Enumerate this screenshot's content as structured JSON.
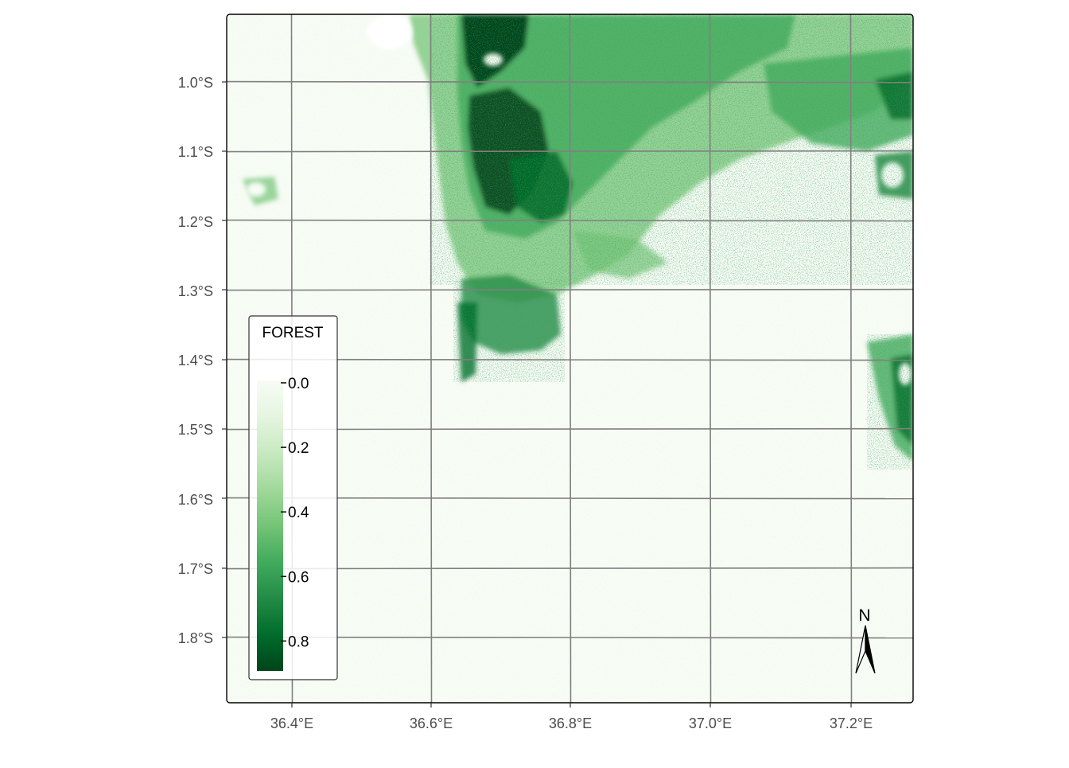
{
  "map": {
    "type": "raster",
    "legend": {
      "title": "FOREST",
      "ticks": [
        "0.0",
        "0.2",
        "0.4",
        "0.6",
        "0.8"
      ],
      "gradient": [
        "#f7fcf5",
        "#e5f5e0",
        "#c7e9c0",
        "#a1d99b",
        "#74c476",
        "#41ab5d",
        "#238b45",
        "#006d2c",
        "#00441b"
      ],
      "range": [
        0,
        0.9
      ],
      "placement": "bottom-left"
    },
    "lat_labels": [
      "1.0°S",
      "1.1°S",
      "1.2°S",
      "1.3°S",
      "1.4°S",
      "1.5°S",
      "1.6°S",
      "1.7°S",
      "1.8°S"
    ],
    "lon_labels": [
      "36.4°E",
      "36.6°E",
      "36.8°E",
      "37.0°E",
      "37.2°E"
    ],
    "north_arrow": {
      "label": "N",
      "icon": "north-arrow-icon",
      "placement": "bottom-right"
    },
    "grid": true,
    "colors": {
      "background": "#f7fcf5",
      "grid": "#808080",
      "frame": "#000000",
      "forest_dark": "#00441b",
      "forest_mid": "#238b45",
      "forest_light": "#a1d99b"
    }
  }
}
